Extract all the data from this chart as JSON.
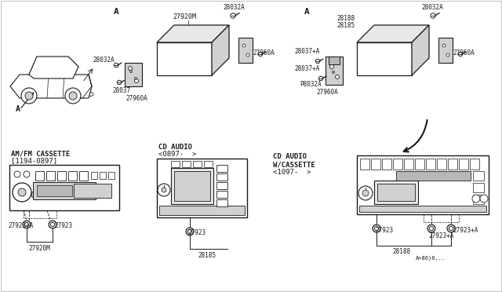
{
  "bg_color": "#ffffff",
  "line_color": "#1a1a1a",
  "gray1": "#e8e8e8",
  "gray2": "#d0d0d0",
  "gray3": "#b8b8b8",
  "sections": {
    "car_label": "A",
    "a_label_1": "A",
    "a_label_2": "A"
  },
  "exploded1_labels": {
    "top": "27920M",
    "screw_top": "28032A",
    "screw_left": "28032A",
    "bracket": "28037",
    "screw_bottom": "27960A",
    "screw_right": "27960A"
  },
  "exploded2_labels": {
    "screw_top": "28032A",
    "top1": "28188",
    "top2": "28185",
    "bracket_left1": "28037+A",
    "bracket_left2": "28037+A",
    "bracket_bot": "P8032A",
    "screw_bot": "27960A",
    "screw_right": "27960A"
  },
  "radio1": {
    "title1": "AM/FM CASSETTE",
    "title2": "[1194-0897]",
    "conn1": "27923+A",
    "conn2": "27923",
    "wire_label": "27920M"
  },
  "radio2": {
    "title1": "CD AUDIO",
    "title2": "<0897-  >",
    "conn1": "27923",
    "wire_label": "28185"
  },
  "radio3": {
    "title1": "CD AUDIO",
    "title2": "W/CASSETTE",
    "title3": "<1097-  >",
    "conn1": "27923",
    "conn2": "27923+A",
    "conn3": "27923+A",
    "wire_label": "28188",
    "wire_label2": "A>80)0..."
  }
}
